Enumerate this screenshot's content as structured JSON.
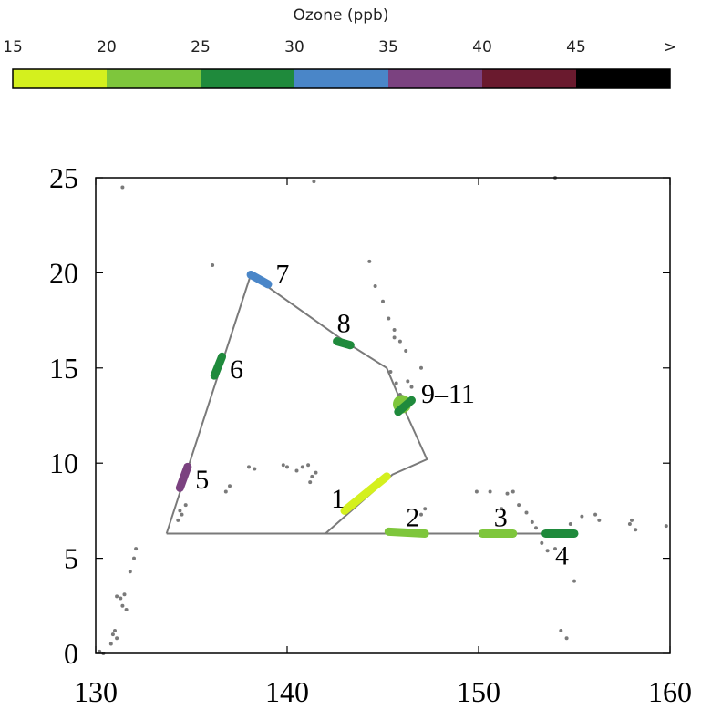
{
  "colorbar": {
    "title": "Ozone (ppb)",
    "tick_labels": [
      "15",
      "20",
      "25",
      "30",
      "35",
      "40",
      "45",
      ">"
    ],
    "segments": [
      {
        "from": 15,
        "to": 20,
        "color": "#d4f01e"
      },
      {
        "from": 20,
        "to": 25,
        "color": "#7ec63c"
      },
      {
        "from": 25,
        "to": 30,
        "color": "#1f8a3c"
      },
      {
        "from": 30,
        "to": 35,
        "color": "#4a86c8"
      },
      {
        "from": 35,
        "to": 40,
        "color": "#7b4280"
      },
      {
        "from": 40,
        "to": 45,
        "color": "#6a1a2e"
      },
      {
        "from": 45,
        "to": null,
        "color": "#000000"
      }
    ]
  },
  "chart_data": {
    "type": "scatter",
    "title": "",
    "xlabel": "",
    "ylabel": "",
    "xlim": [
      130,
      160
    ],
    "ylim": [
      0,
      25
    ],
    "xticks": [
      130,
      140,
      150,
      160
    ],
    "yticks": [
      0,
      5,
      10,
      15,
      20,
      25
    ],
    "grid": false,
    "track": {
      "color": "#7a7a7a",
      "x": [
        133.7,
        138.1,
        143.0,
        145.2,
        146.0,
        147.3,
        145.5,
        142.0,
        133.7,
        155.0
      ],
      "y": [
        6.3,
        19.9,
        16.4,
        15.0,
        13.1,
        10.2,
        9.4,
        6.3,
        6.3,
        6.3
      ]
    },
    "segments": [
      {
        "label": "1",
        "color": "#d4f01e",
        "x": [
          143.0,
          145.2
        ],
        "y": [
          7.5,
          9.3
        ],
        "label_x": 142.3,
        "label_y": 8.2
      },
      {
        "label": "2",
        "color": "#7ec63c",
        "x": [
          145.3,
          147.2
        ],
        "y": [
          6.4,
          6.3
        ],
        "label_x": 146.2,
        "label_y": 7.2
      },
      {
        "label": "3",
        "color": "#7ec63c",
        "x": [
          150.2,
          151.8
        ],
        "y": [
          6.3,
          6.3
        ],
        "label_x": 150.8,
        "label_y": 7.2
      },
      {
        "label": "4",
        "color": "#1f8a3c",
        "x": [
          153.5,
          155.0
        ],
        "y": [
          6.3,
          6.3
        ],
        "label_x": 154.0,
        "label_y": 5.2
      },
      {
        "label": "5",
        "color": "#7b4280",
        "x": [
          134.4,
          134.8
        ],
        "y": [
          8.7,
          9.8
        ],
        "label_x": 135.2,
        "label_y": 9.2
      },
      {
        "label": "6",
        "color": "#1f8a3c",
        "x": [
          136.2,
          136.6
        ],
        "y": [
          14.6,
          15.6
        ],
        "label_x": 137.0,
        "label_y": 15.0
      },
      {
        "label": "7",
        "color": "#4a86c8",
        "x": [
          138.1,
          139.0
        ],
        "y": [
          19.9,
          19.4
        ],
        "label_x": 139.4,
        "label_y": 20.0
      },
      {
        "label": "8",
        "color": "#1f8a3c",
        "x": [
          142.6,
          143.3
        ],
        "y": [
          16.4,
          16.2
        ],
        "label_x": 142.6,
        "label_y": 17.4
      },
      {
        "label": "9–11",
        "color": "#1f8a3c",
        "x": [
          145.8,
          146.5
        ],
        "y": [
          12.7,
          13.3
        ],
        "label_x": 147.0,
        "label_y": 13.7
      }
    ],
    "marker_9_11": {
      "x": 146.0,
      "y": 13.1,
      "color": "#7ec63c"
    },
    "scatter_points": {
      "color": "#7a7a7a",
      "x": [
        130.2,
        130.4,
        130.8,
        130.9,
        131.0,
        131.1,
        131.3,
        131.5,
        131.8,
        132.0,
        132.1,
        131.1,
        131.4,
        134.3,
        134.5,
        134.7,
        134.4,
        136.1,
        136.8,
        137.0,
        138.0,
        138.3,
        139.8,
        140.0,
        140.5,
        140.8,
        141.1,
        141.5,
        141.2,
        141.3,
        144.3,
        144.6,
        145.0,
        145.3,
        145.6,
        145.9,
        146.2,
        145.4,
        145.7,
        145.9,
        146.0,
        146.1,
        145.8,
        146.3,
        146.5,
        147.0,
        145.6,
        147.0,
        147.2,
        149.9,
        150.6,
        151.2,
        151.5,
        151.8,
        152.1,
        152.5,
        152.8,
        153.0,
        153.3,
        153.6,
        154.0,
        155.0,
        154.8,
        155.4,
        156.1,
        156.3,
        157.9,
        158.0,
        158.2,
        159.8,
        154.3,
        154.6,
        141.4,
        154.0,
        131.4,
        131.6
      ],
      "y": [
        0.1,
        0.0,
        0.5,
        1.0,
        1.2,
        0.8,
        2.9,
        3.1,
        4.3,
        5.0,
        5.5,
        3.0,
        24.5,
        7.0,
        7.3,
        7.8,
        7.5,
        20.4,
        8.5,
        8.8,
        9.8,
        9.7,
        9.9,
        9.8,
        9.6,
        9.8,
        9.9,
        9.5,
        9.0,
        9.3,
        20.6,
        19.3,
        18.5,
        17.6,
        17.0,
        16.4,
        15.9,
        14.8,
        14.2,
        13.6,
        13.5,
        13.4,
        13.2,
        14.3,
        14.0,
        15.0,
        16.6,
        7.3,
        7.6,
        8.5,
        8.5,
        7.6,
        8.4,
        8.5,
        7.8,
        7.4,
        6.9,
        6.6,
        5.8,
        5.4,
        5.5,
        3.8,
        6.8,
        7.2,
        7.3,
        7.0,
        6.8,
        7.0,
        6.5,
        6.7,
        1.2,
        0.8,
        24.8,
        25.0,
        2.5,
        2.3
      ]
    }
  }
}
